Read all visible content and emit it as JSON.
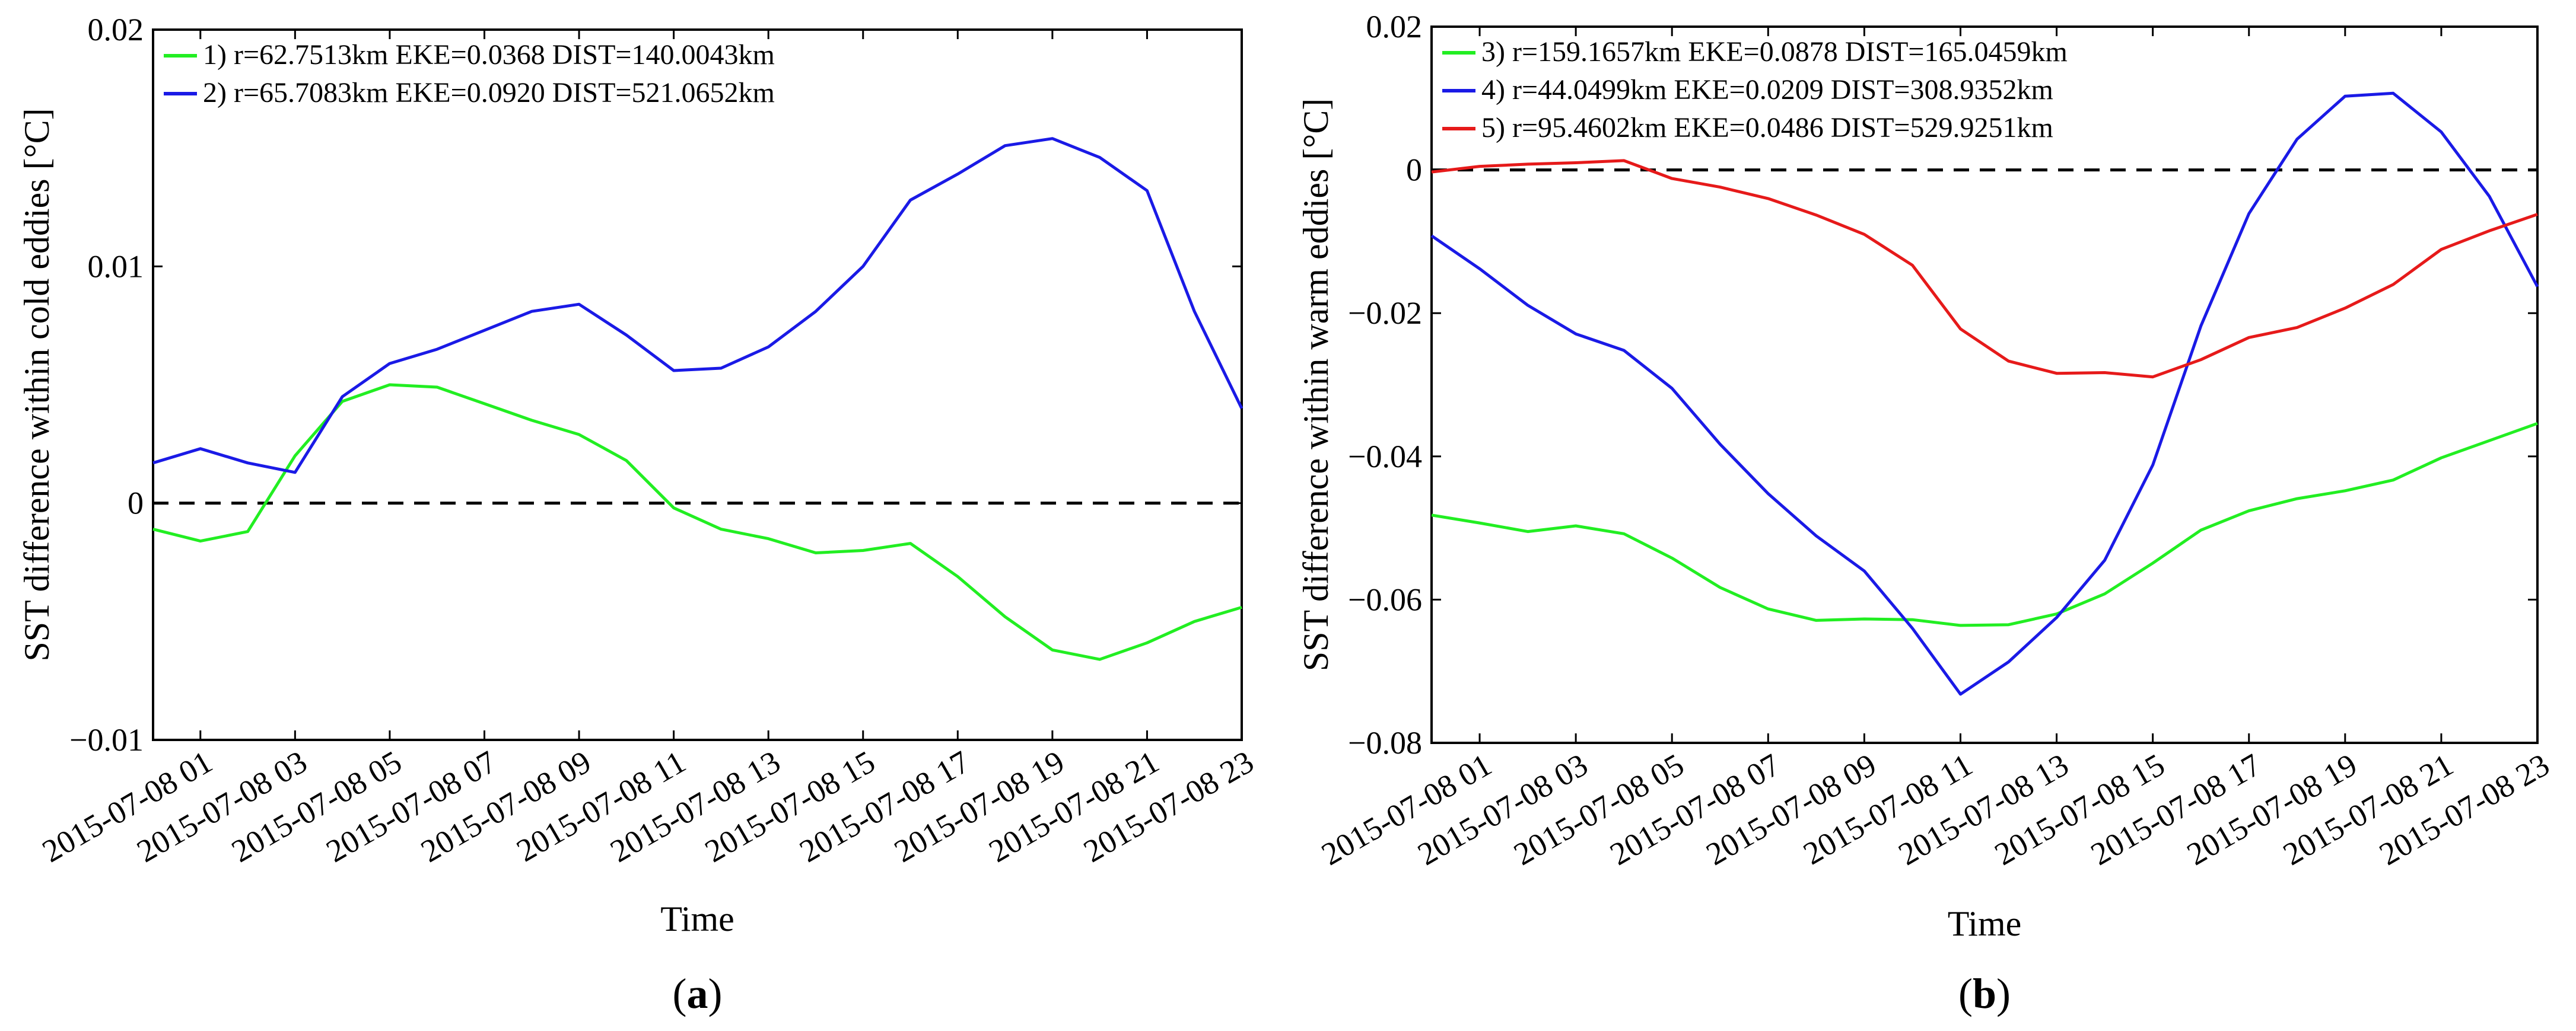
{
  "figure": {
    "panels": [
      {
        "label_open": "(",
        "label_letter": "a",
        "label_close": ")"
      },
      {
        "label_open": "(",
        "label_letter": "b",
        "label_close": ")"
      }
    ]
  },
  "chart_data": [
    {
      "type": "line",
      "title": "",
      "xlabel": "Time",
      "ylabel": "SST difference within cold eddies [°C]",
      "ylim": [
        -0.01,
        0.02
      ],
      "yticks": [
        -0.01,
        0,
        0.01,
        0.02
      ],
      "ytick_labels": [
        "−0.01",
        "0",
        "0.01",
        "0.02"
      ],
      "xlim": [
        0,
        23
      ],
      "xticks": [
        1,
        3,
        5,
        7,
        9,
        11,
        13,
        15,
        17,
        19,
        21,
        23
      ],
      "xtick_labels": [
        "2015-07-08 01",
        "2015-07-08 03",
        "2015-07-08 05",
        "2015-07-08 07",
        "2015-07-08 09",
        "2015-07-08 11",
        "2015-07-08 13",
        "2015-07-08 15",
        "2015-07-08 17",
        "2015-07-08 19",
        "2015-07-08 21",
        "2015-07-08 23"
      ],
      "x": [
        0,
        1,
        2,
        3,
        4,
        5,
        6,
        7,
        8,
        9,
        10,
        11,
        12,
        13,
        14,
        15,
        16,
        17,
        18,
        19,
        20,
        21,
        22,
        23
      ],
      "reference_line": {
        "y": 0,
        "style": "dashed",
        "color": "#000000"
      },
      "legend_position": "top-left",
      "series": [
        {
          "name": "1) r=62.7513km EKE=0.0368 DIST=140.0043km",
          "color": "#22ee22",
          "values": [
            -0.0011,
            -0.0016,
            -0.0012,
            0.002,
            0.0043,
            0.005,
            0.0049,
            0.0042,
            0.0035,
            0.0029,
            0.0018,
            -0.0002,
            -0.0011,
            -0.0015,
            -0.0021,
            -0.002,
            -0.0017,
            -0.0031,
            -0.0048,
            -0.0062,
            -0.0066,
            -0.0059,
            -0.005,
            -0.0044
          ]
        },
        {
          "name": "2) r=65.7083km EKE=0.0920 DIST=521.0652km",
          "color": "#1a1ae6",
          "values": [
            0.0017,
            0.0023,
            0.0017,
            0.0013,
            0.0045,
            0.0059,
            0.0065,
            0.0073,
            0.0081,
            0.0084,
            0.0071,
            0.0056,
            0.0057,
            0.0066,
            0.0081,
            0.01,
            0.0128,
            0.0139,
            0.0151,
            0.0154,
            0.0146,
            0.0132,
            0.0081,
            0.004
          ]
        }
      ]
    },
    {
      "type": "line",
      "title": "",
      "xlabel": "Time",
      "ylabel": "SST difference within warm eddies [°C]",
      "ylim": [
        -0.08,
        0.02
      ],
      "yticks": [
        -0.08,
        -0.06,
        -0.04,
        -0.02,
        0,
        0.02
      ],
      "ytick_labels": [
        "−0.08",
        "−0.06",
        "−0.04",
        "−0.02",
        "0",
        "0.02"
      ],
      "xlim": [
        0,
        23
      ],
      "xticks": [
        1,
        3,
        5,
        7,
        9,
        11,
        13,
        15,
        17,
        19,
        21,
        23
      ],
      "xtick_labels": [
        "2015-07-08 01",
        "2015-07-08 03",
        "2015-07-08 05",
        "2015-07-08 07",
        "2015-07-08 09",
        "2015-07-08 11",
        "2015-07-08 13",
        "2015-07-08 15",
        "2015-07-08 17",
        "2015-07-08 19",
        "2015-07-08 21",
        "2015-07-08 23"
      ],
      "x": [
        0,
        1,
        2,
        3,
        4,
        5,
        6,
        7,
        8,
        9,
        10,
        11,
        12,
        13,
        14,
        15,
        16,
        17,
        18,
        19,
        20,
        21,
        22,
        23
      ],
      "reference_line": {
        "y": 0,
        "style": "dashed",
        "color": "#000000"
      },
      "legend_position": "top-left",
      "series": [
        {
          "name": "3) r=159.1657km EKE=0.0878 DIST=165.0459km",
          "color": "#22ee22",
          "values": [
            -0.0482,
            -0.0493,
            -0.0505,
            -0.0497,
            -0.0508,
            -0.0542,
            -0.0583,
            -0.0613,
            -0.0629,
            -0.0627,
            -0.0628,
            -0.0636,
            -0.0635,
            -0.062,
            -0.0592,
            -0.0549,
            -0.0503,
            -0.0476,
            -0.0459,
            -0.0448,
            -0.0433,
            -0.0402,
            -0.0378,
            -0.0354
          ]
        },
        {
          "name": "4) r=44.0499km EKE=0.0209 DIST=308.9352km",
          "color": "#1a1ae6",
          "values": [
            -0.0092,
            -0.0138,
            -0.0189,
            -0.0229,
            -0.0252,
            -0.0305,
            -0.0383,
            -0.0452,
            -0.0511,
            -0.056,
            -0.064,
            -0.0732,
            -0.0687,
            -0.0625,
            -0.0545,
            -0.0412,
            -0.0218,
            -0.0061,
            0.0043,
            0.0103,
            0.0107,
            0.0053,
            -0.0037,
            -0.0163
          ]
        },
        {
          "name": "5) r=95.4602km EKE=0.0486 DIST=529.9251km",
          "color": "#e61a1a",
          "values": [
            -0.0003,
            0.0005,
            0.0008,
            0.001,
            0.0013,
            -0.0012,
            -0.0024,
            -0.004,
            -0.0063,
            -0.009,
            -0.0133,
            -0.0222,
            -0.0267,
            -0.0284,
            -0.0283,
            -0.0289,
            -0.0265,
            -0.0234,
            -0.022,
            -0.0193,
            -0.016,
            -0.0111,
            -0.0085,
            -0.0062
          ]
        }
      ]
    }
  ]
}
